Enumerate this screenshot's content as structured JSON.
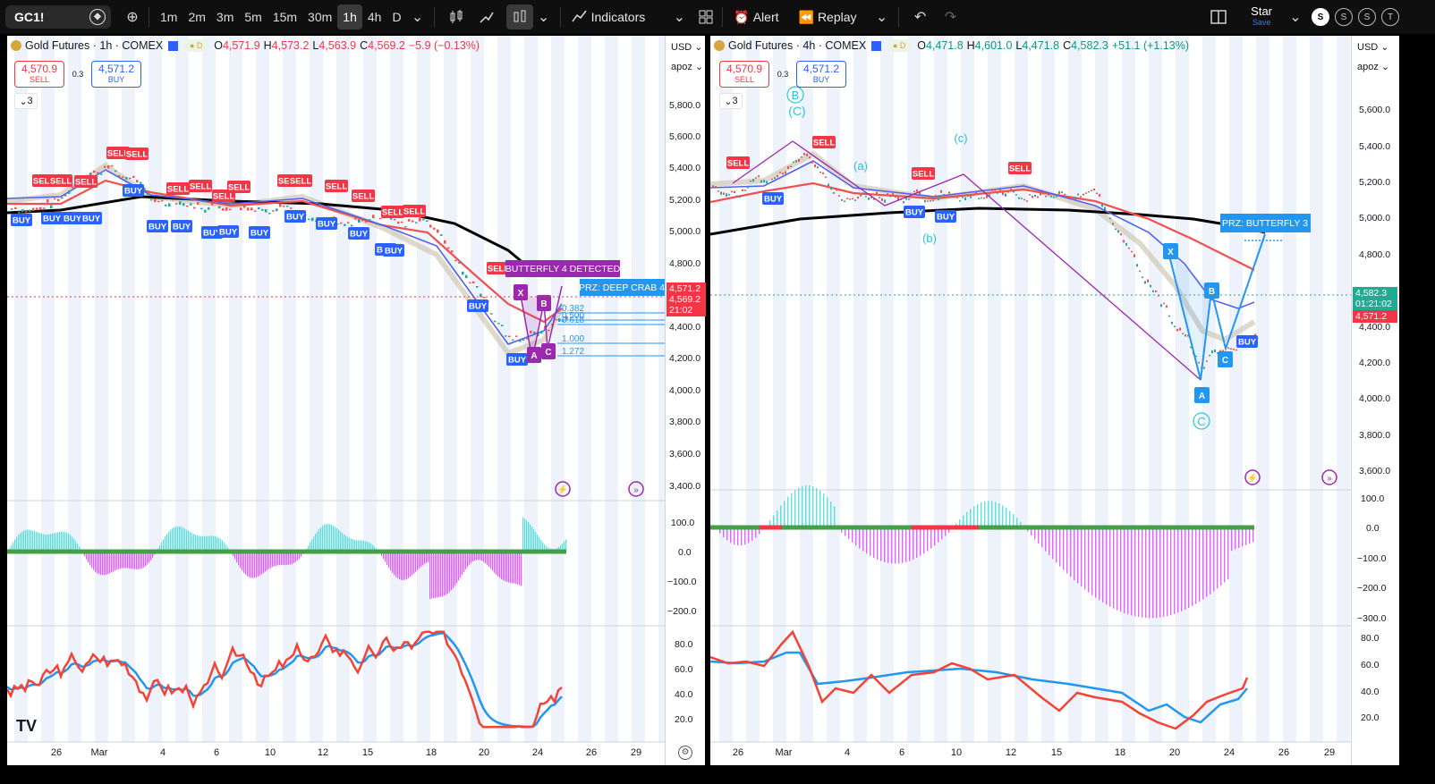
{
  "toolbar": {
    "symbol": "GC1!",
    "intervals": [
      "1m",
      "2m",
      "3m",
      "5m",
      "15m",
      "30m",
      "1h",
      "4h",
      "D"
    ],
    "active_interval": "1h",
    "indicators_label": "Indicators",
    "alert_label": "Alert",
    "replay_label": "Replay",
    "user_name": "Star",
    "save_label": "Save",
    "circles": [
      "S",
      "S",
      "S",
      "T"
    ]
  },
  "left": {
    "title": "Gold Futures · 1h · COMEX",
    "ohlc": {
      "o": "4,571.9",
      "h": "4,573.2",
      "l": "4,563.9",
      "c": "4,569.2",
      "chg": "−5.9 (−0.13%)"
    },
    "sell_price": "4,570.9",
    "sell_label": "SELL",
    "buy_price": "4,571.2",
    "buy_label": "BUY",
    "spread": "0.3",
    "collapse_count": "3",
    "currency": "USD",
    "scale_mode": "apoz",
    "price_ticks": [
      "5,800.0",
      "5,600.0",
      "5,400.0",
      "5,200.0",
      "5,000.0",
      "4,800.0",
      "4,400.0",
      "4,200.0",
      "4,000.0",
      "3,800.0",
      "3,600.0",
      "3,400.0"
    ],
    "tag_red": "4,571.2",
    "tag_red2": "4,569.2",
    "tag_time": "21:02",
    "osc_ticks": [
      "100.0",
      "0.0",
      "−100.0",
      "−200.0"
    ],
    "rsi_ticks": [
      "80.0",
      "60.0",
      "40.0",
      "20.0"
    ],
    "x_ticks": [
      "26",
      "Mar",
      "4",
      "6",
      "10",
      "12",
      "15",
      "18",
      "20",
      "24",
      "26",
      "29"
    ],
    "butterfly_label": "BUTTERFLY 4 DETECTED",
    "prz_label": "PRZ: DEEP CRAB 4",
    "fib_levels": [
      "0.382",
      "0.500",
      "0.618",
      "1.000",
      "1.272"
    ],
    "pattern_points": [
      "X",
      "A",
      "B",
      "C"
    ],
    "signals": {
      "sell": "SELL",
      "buy": "BUY"
    }
  },
  "right": {
    "title": "Gold Futures · 4h · COMEX",
    "ohlc": {
      "o": "4,471.8",
      "h": "4,601.0",
      "l": "4,471.8",
      "c": "4,582.3",
      "chg": "+51.1 (+1.13%)"
    },
    "sell_price": "4,570.9",
    "sell_label": "SELL",
    "buy_price": "4,571.2",
    "buy_label": "BUY",
    "spread": "0.3",
    "collapse_count": "3",
    "currency": "USD",
    "scale_mode": "apoz",
    "price_ticks": [
      "5,600.0",
      "5,400.0",
      "5,200.0",
      "5,000.0",
      "4,800.0",
      "4,400.0",
      "4,200.0",
      "4,000.0",
      "3,800.0",
      "3,600.0"
    ],
    "tag_green": "4,582.3",
    "tag_time": "01:21:02",
    "tag_red": "4,571.2",
    "osc_ticks": [
      "100.0",
      "0.0",
      "−100.0",
      "−200.0",
      "−300.0"
    ],
    "rsi_ticks": [
      "80.0",
      "60.0",
      "40.0",
      "20.0"
    ],
    "x_ticks": [
      "26",
      "Mar",
      "4",
      "6",
      "10",
      "12",
      "15",
      "18",
      "20",
      "24",
      "26",
      "29"
    ],
    "prz_label": "PRZ: BUTTERFLY 3",
    "wave_labels": [
      "B",
      "(C)",
      "(a)",
      "(b)",
      "(c)",
      "C"
    ],
    "pattern_points": [
      "X",
      "A",
      "B",
      "C"
    ],
    "signals": {
      "sell": "SELL",
      "buy": "BUY"
    }
  }
}
